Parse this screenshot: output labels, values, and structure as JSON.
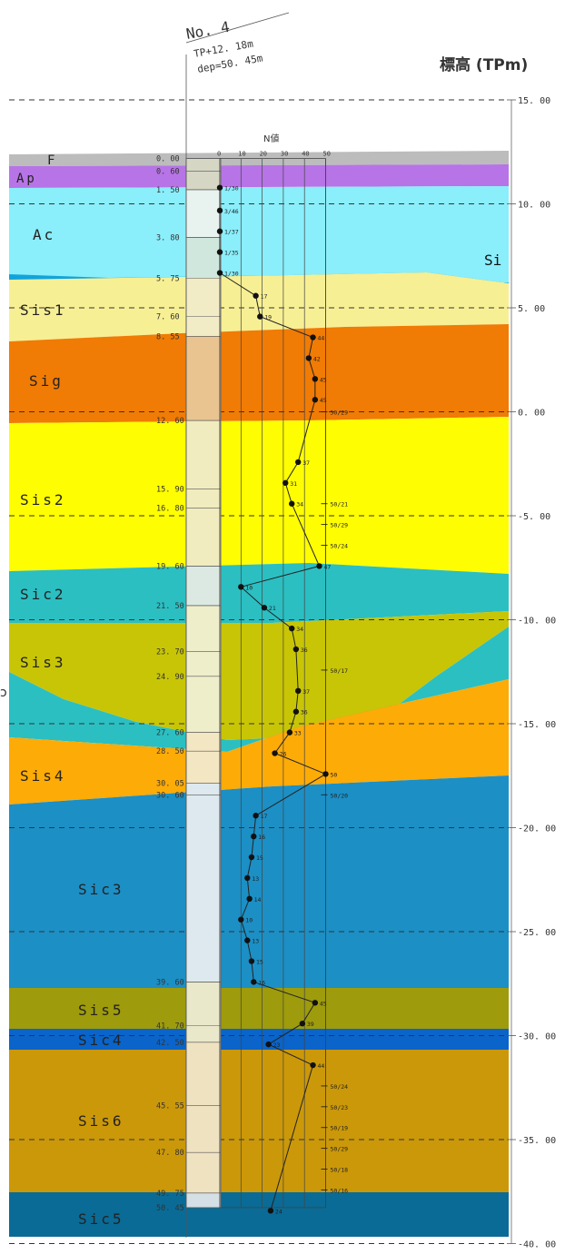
{
  "borehole": {
    "name": "No. 4",
    "tp": "TP+12. 18m",
    "dep": "dep=50. 45m"
  },
  "elevation_title": "標高 (TPm)",
  "nvalue_header": "N値",
  "side_label": "Si",
  "edge_label": "ɔ",
  "elevation_ticks": [
    {
      "label": "15. 00",
      "elev": 15
    },
    {
      "label": "10. 00",
      "elev": 10
    },
    {
      "label": "5. 00",
      "elev": 5
    },
    {
      "label": "0. 00",
      "elev": 0
    },
    {
      "label": "-5. 00",
      "elev": -5
    },
    {
      "label": "-10. 00",
      "elev": -10
    },
    {
      "label": "-15. 00",
      "elev": -15
    },
    {
      "label": "-20. 00",
      "elev": -20
    },
    {
      "label": "-25. 00",
      "elev": -25
    },
    {
      "label": "-30. 00",
      "elev": -30
    },
    {
      "label": "-35. 00",
      "elev": -35
    },
    {
      "label": "-40. 00",
      "elev": -40
    }
  ],
  "nvalue_ticks": [
    "0",
    "10",
    "20",
    "30",
    "40",
    "50"
  ],
  "layers": [
    {
      "name": "F",
      "color": "#bcbcbc"
    },
    {
      "name": "Ap",
      "color": "#b774e6"
    },
    {
      "name": "Ac",
      "color": "#8aeefb"
    },
    {
      "name": "Sis1",
      "color": "#f7ef94"
    },
    {
      "name": "Sig",
      "color": "#f07b05"
    },
    {
      "name": "Sis2",
      "color": "#fefd02"
    },
    {
      "name": "Sic2",
      "color": "#2bbfc2"
    },
    {
      "name": "Sis3",
      "color": "#c8c506"
    },
    {
      "name": "Sis4",
      "color": "#fdab07"
    },
    {
      "name": "Sic3",
      "color": "#1c8fc5"
    },
    {
      "name": "Sis5",
      "color": "#9e9b0c"
    },
    {
      "name": "Sic4",
      "color": "#0a64c9"
    },
    {
      "name": "Sis6",
      "color": "#cb9809"
    },
    {
      "name": "Sic5",
      "color": "#0a6b96"
    }
  ],
  "depths": [
    {
      "label": "0. 00",
      "depth": 0.0
    },
    {
      "label": "0. 60",
      "depth": 0.6
    },
    {
      "label": "1. 50",
      "depth": 1.5
    },
    {
      "label": "3. 80",
      "depth": 3.8
    },
    {
      "label": "5. 75",
      "depth": 5.75
    },
    {
      "label": "7. 60",
      "depth": 7.6
    },
    {
      "label": "8. 55",
      "depth": 8.55
    },
    {
      "label": "12. 60",
      "depth": 12.6
    },
    {
      "label": "15. 90",
      "depth": 15.9
    },
    {
      "label": "16. 80",
      "depth": 16.8
    },
    {
      "label": "19. 60",
      "depth": 19.6
    },
    {
      "label": "21. 50",
      "depth": 21.5
    },
    {
      "label": "23. 70",
      "depth": 23.7
    },
    {
      "label": "24. 90",
      "depth": 24.9
    },
    {
      "label": "27. 60",
      "depth": 27.6
    },
    {
      "label": "28. 50",
      "depth": 28.5
    },
    {
      "label": "30. 05",
      "depth": 30.05
    },
    {
      "label": "30. 60",
      "depth": 30.6
    },
    {
      "label": "39. 60",
      "depth": 39.6
    },
    {
      "label": "41. 70",
      "depth": 41.7
    },
    {
      "label": "42. 50",
      "depth": 42.5
    },
    {
      "label": "45. 55",
      "depth": 45.55
    },
    {
      "label": "47. 80",
      "depth": 47.8
    },
    {
      "label": "49. 75",
      "depth": 49.75
    },
    {
      "label": "50. 45",
      "depth": 50.45
    }
  ],
  "chart_data": {
    "type": "scatter",
    "title": "標高 (TPm)",
    "xlabel": "N値",
    "xlim": [
      0,
      50
    ],
    "ylim": [
      -40,
      15
    ],
    "ground_elevation": 12.18,
    "total_depth": 50.45,
    "points": [
      {
        "elev": 10.78,
        "n": 0,
        "label": "1/30"
      },
      {
        "elev": 9.68,
        "n": 0,
        "label": "3/46"
      },
      {
        "elev": 8.68,
        "n": 0,
        "label": "1/37"
      },
      {
        "elev": 7.68,
        "n": 0,
        "label": "1/35"
      },
      {
        "elev": 6.68,
        "n": 0,
        "label": "1/30"
      },
      {
        "elev": 5.58,
        "n": 17,
        "label": "17"
      },
      {
        "elev": 4.58,
        "n": 19,
        "label": "19"
      },
      {
        "elev": 3.58,
        "n": 44,
        "label": "44"
      },
      {
        "elev": 2.58,
        "n": 42,
        "label": "42"
      },
      {
        "elev": 1.58,
        "n": 45,
        "label": "45"
      },
      {
        "elev": 0.58,
        "n": 45,
        "label": "45"
      },
      {
        "elev": -2.42,
        "n": 37,
        "label": "37"
      },
      {
        "elev": -3.42,
        "n": 31,
        "label": "31"
      },
      {
        "elev": -4.42,
        "n": 34,
        "label": "34"
      },
      {
        "elev": -7.42,
        "n": 47,
        "label": "47"
      },
      {
        "elev": -8.42,
        "n": 10,
        "label": "10"
      },
      {
        "elev": -9.42,
        "n": 21,
        "label": "21"
      },
      {
        "elev": -10.42,
        "n": 34,
        "label": "34"
      },
      {
        "elev": -11.42,
        "n": 36,
        "label": "36"
      },
      {
        "elev": -13.42,
        "n": 37,
        "label": "37"
      },
      {
        "elev": -14.42,
        "n": 36,
        "label": "36"
      },
      {
        "elev": -15.42,
        "n": 33,
        "label": "33"
      },
      {
        "elev": -16.42,
        "n": 26,
        "label": "26"
      },
      {
        "elev": -17.42,
        "n": 50,
        "label": "50"
      },
      {
        "elev": -19.42,
        "n": 17,
        "label": "17"
      },
      {
        "elev": -20.42,
        "n": 16,
        "label": "16"
      },
      {
        "elev": -21.42,
        "n": 15,
        "label": "15"
      },
      {
        "elev": -22.42,
        "n": 13,
        "label": "13"
      },
      {
        "elev": -23.42,
        "n": 14,
        "label": "14"
      },
      {
        "elev": -24.42,
        "n": 10,
        "label": "10"
      },
      {
        "elev": -25.42,
        "n": 13,
        "label": "13"
      },
      {
        "elev": -26.42,
        "n": 15,
        "label": "15"
      },
      {
        "elev": -27.42,
        "n": 16,
        "label": "16"
      },
      {
        "elev": -28.42,
        "n": 45,
        "label": "45"
      },
      {
        "elev": -29.42,
        "n": 39,
        "label": "39"
      },
      {
        "elev": -30.42,
        "n": 23,
        "label": "23"
      },
      {
        "elev": -31.42,
        "n": 44,
        "label": "44"
      },
      {
        "elev": -38.42,
        "n": 24,
        "label": "24"
      }
    ],
    "refusals": [
      {
        "elev": 0.0,
        "label": "50/29"
      },
      {
        "elev": -4.42,
        "label": "50/21"
      },
      {
        "elev": -5.42,
        "label": "50/29"
      },
      {
        "elev": -6.42,
        "label": "50/24"
      },
      {
        "elev": -12.42,
        "label": "50/17"
      },
      {
        "elev": -18.42,
        "label": "50/20"
      },
      {
        "elev": -32.42,
        "label": "50/24"
      },
      {
        "elev": -33.42,
        "label": "50/23"
      },
      {
        "elev": -34.42,
        "label": "50/19"
      },
      {
        "elev": -35.42,
        "label": "50/29"
      },
      {
        "elev": -36.42,
        "label": "50/18"
      },
      {
        "elev": -37.42,
        "label": "50/16"
      }
    ]
  }
}
